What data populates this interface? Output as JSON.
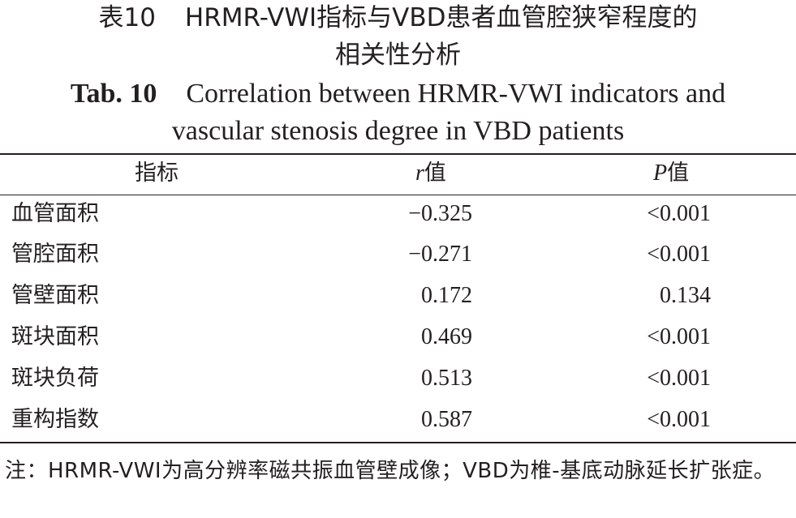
{
  "caption": {
    "cn_label": "表10",
    "cn_title_line1": "HRMR-VWI指标与VBD患者血管腔狭窄程度的",
    "cn_title_line2": "相关性分析",
    "en_label": "Tab. 10",
    "en_title_line1": "Correlation between HRMR-VWI indicators and",
    "en_title_line2": "vascular stenosis degree in VBD patients"
  },
  "table": {
    "headers": {
      "indicator": "指标",
      "r_symbol": "r",
      "r_suffix": "值",
      "p_symbol": "P",
      "p_suffix": "值"
    },
    "rows": [
      {
        "indicator": "血管面积",
        "r": "−0.325",
        "p": "<0.001"
      },
      {
        "indicator": "管腔面积",
        "r": "−0.271",
        "p": "<0.001"
      },
      {
        "indicator": "管壁面积",
        "r": "0.172",
        "p": "0.134"
      },
      {
        "indicator": "斑块面积",
        "r": "0.469",
        "p": "<0.001"
      },
      {
        "indicator": "斑块负荷",
        "r": "0.513",
        "p": "<0.001"
      },
      {
        "indicator": "重构指数",
        "r": "0.587",
        "p": "<0.001"
      }
    ]
  },
  "note": "注：HRMR-VWI为高分辨率磁共振血管壁成像；VBD为椎-基底动脉延长扩张症。"
}
